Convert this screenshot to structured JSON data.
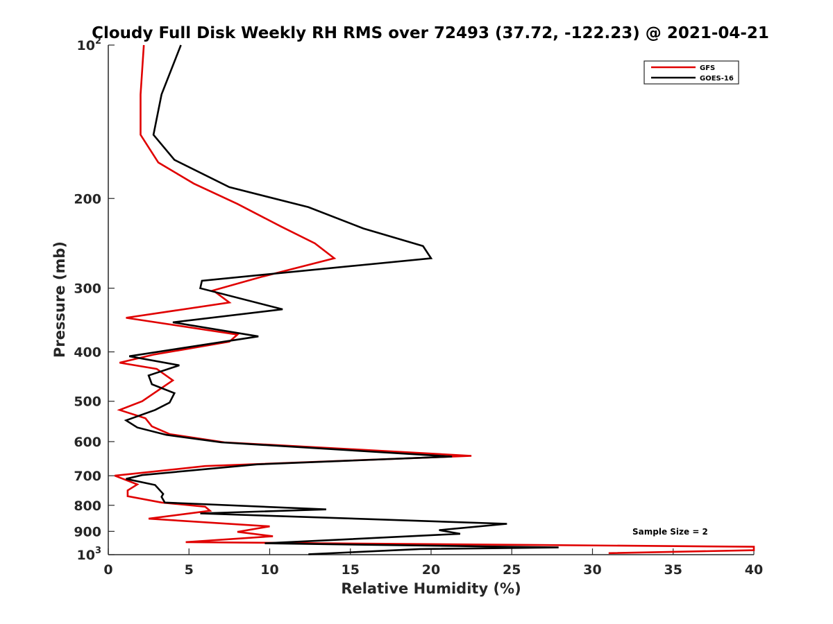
{
  "chart_data": {
    "type": "line",
    "title": "Cloudy Full Disk Weekly RH RMS over 72493 (37.72, -122.23) @ 2021-04-21",
    "xlabel": "Relative Humidity (%)",
    "ylabel": "Pressure (mb)",
    "xlim": [
      0,
      40
    ],
    "ylim": [
      100,
      1000
    ],
    "yscale": "log",
    "y_reversed": true,
    "grid": false,
    "legend_position": "top-right",
    "x_ticks": [
      0,
      5,
      10,
      15,
      20,
      25,
      30,
      35,
      40
    ],
    "x_tick_labels": [
      "0",
      "5",
      "10",
      "15",
      "20",
      "25",
      "30",
      "35",
      "40"
    ],
    "y_ticks": [
      100,
      200,
      300,
      400,
      500,
      600,
      700,
      800,
      900,
      1000
    ],
    "y_tick_labels": [
      {
        "base": "10",
        "exp": "2"
      },
      {
        "base": "200",
        "exp": ""
      },
      {
        "base": "300",
        "exp": ""
      },
      {
        "base": "400",
        "exp": ""
      },
      {
        "base": "500",
        "exp": ""
      },
      {
        "base": "600",
        "exp": ""
      },
      {
        "base": "700",
        "exp": ""
      },
      {
        "base": "800",
        "exp": ""
      },
      {
        "base": "900",
        "exp": ""
      },
      {
        "base": "10",
        "exp": "3"
      }
    ],
    "annotation": "Sample Size = 2",
    "series": [
      {
        "name": "GFS",
        "color": "#e00000",
        "points": [
          [
            2.2,
            100
          ],
          [
            2.0,
            125
          ],
          [
            2.0,
            150
          ],
          [
            3.1,
            170
          ],
          [
            5.3,
            187
          ],
          [
            8.0,
            205
          ],
          [
            10.7,
            227
          ],
          [
            12.8,
            245
          ],
          [
            14.0,
            262
          ],
          [
            9.5,
            285
          ],
          [
            6.5,
            303
          ],
          [
            7.5,
            320
          ],
          [
            1.1,
            343
          ],
          [
            8.0,
            370
          ],
          [
            7.5,
            382
          ],
          [
            2.8,
            405
          ],
          [
            0.7,
            420
          ],
          [
            3.0,
            432
          ],
          [
            4.0,
            455
          ],
          [
            2.1,
            500
          ],
          [
            0.7,
            520
          ],
          [
            2.3,
            540
          ],
          [
            2.7,
            560
          ],
          [
            3.8,
            580
          ],
          [
            7.2,
            602
          ],
          [
            15.5,
            622
          ],
          [
            22.5,
            640
          ],
          [
            6.0,
            670
          ],
          [
            0.4,
            700
          ],
          [
            1.8,
            728
          ],
          [
            1.2,
            748
          ],
          [
            1.2,
            768
          ],
          [
            3.3,
            790
          ],
          [
            6.0,
            805
          ],
          [
            6.3,
            820
          ],
          [
            2.5,
            850
          ],
          [
            10.0,
            880
          ],
          [
            8.0,
            902
          ],
          [
            10.2,
            920
          ],
          [
            4.8,
            945
          ],
          [
            40.0,
            965
          ],
          [
            40.0,
            980
          ],
          [
            31.0,
            993
          ]
        ]
      },
      {
        "name": "GOES-16",
        "color": "#000000",
        "points": [
          [
            4.5,
            100
          ],
          [
            3.3,
            125
          ],
          [
            2.8,
            150
          ],
          [
            4.1,
            168
          ],
          [
            7.5,
            190
          ],
          [
            12.4,
            208
          ],
          [
            15.8,
            229
          ],
          [
            19.5,
            248
          ],
          [
            20.0,
            262
          ],
          [
            5.8,
            290
          ],
          [
            5.7,
            300
          ],
          [
            10.8,
            330
          ],
          [
            4.0,
            350
          ],
          [
            9.3,
            373
          ],
          [
            1.3,
            408
          ],
          [
            4.4,
            425
          ],
          [
            2.5,
            445
          ],
          [
            2.7,
            463
          ],
          [
            4.1,
            482
          ],
          [
            3.8,
            503
          ],
          [
            2.9,
            520
          ],
          [
            1.1,
            545
          ],
          [
            1.8,
            563
          ],
          [
            3.6,
            582
          ],
          [
            7.0,
            602
          ],
          [
            21.3,
            642
          ],
          [
            9.2,
            665
          ],
          [
            2.1,
            698
          ],
          [
            1.1,
            710
          ],
          [
            2.9,
            730
          ],
          [
            3.4,
            760
          ],
          [
            3.3,
            770
          ],
          [
            3.5,
            790
          ],
          [
            13.5,
            815
          ],
          [
            5.7,
            830
          ],
          [
            24.7,
            870
          ],
          [
            20.5,
            895
          ],
          [
            21.8,
            910
          ],
          [
            9.7,
            950
          ],
          [
            27.9,
            968
          ],
          [
            19.3,
            975
          ],
          [
            12.4,
            998
          ]
        ]
      }
    ]
  }
}
